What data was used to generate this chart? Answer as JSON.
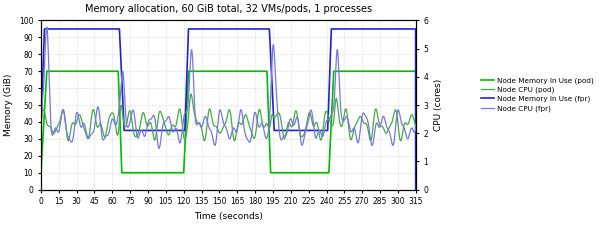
{
  "title": "Memory allocation, 60 GiB total, 32 VMs/pods, 1 processes",
  "xlabel": "Time (seconds)",
  "ylabel_left": "Memory (GiB)",
  "ylabel_right": "CPU (cores)",
  "xlim": [
    0,
    315
  ],
  "ylim_left": [
    0,
    100
  ],
  "ylim_right": [
    0,
    6
  ],
  "xticks": [
    0,
    15,
    30,
    45,
    60,
    75,
    90,
    105,
    120,
    135,
    150,
    165,
    180,
    195,
    210,
    225,
    240,
    255,
    270,
    285,
    300,
    315
  ],
  "yticks_left": [
    0,
    10,
    20,
    30,
    40,
    50,
    60,
    70,
    80,
    90,
    100
  ],
  "yticks_right": [
    0,
    1,
    2,
    3,
    4,
    5,
    6
  ],
  "legend_entries": [
    {
      "label": "Node Memory In Use (pod)",
      "color": "#00bb00",
      "linewidth": 1.2
    },
    {
      "label": "Node CPU (pod)",
      "color": "#44aa44",
      "linewidth": 0.9
    },
    {
      "label": "Node Memory In Use (fpr)",
      "color": "#2222cc",
      "linewidth": 1.2
    },
    {
      "label": "Node CPU (fpr)",
      "color": "#7777dd",
      "linewidth": 0.9
    }
  ],
  "background_color": "#ffffff",
  "grid_color": "#bbbbbb"
}
